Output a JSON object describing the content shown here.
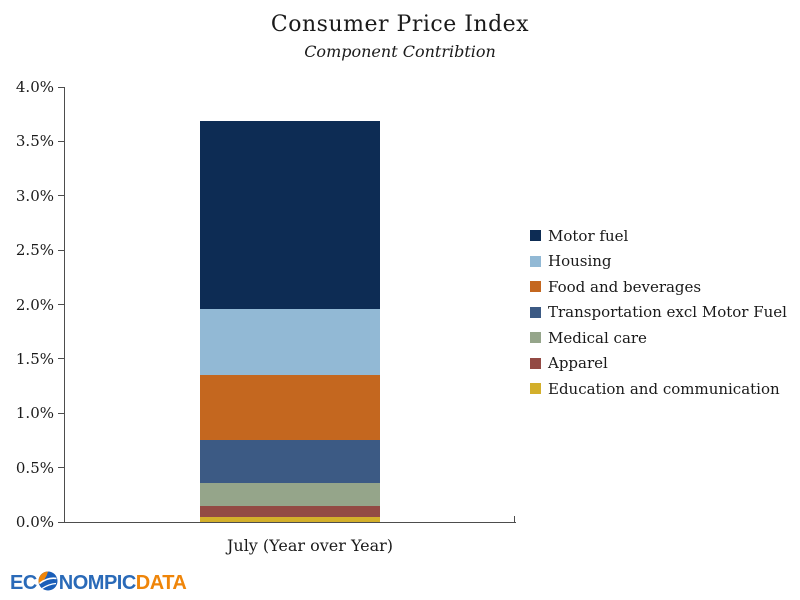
{
  "title": "Consumer Price Index",
  "subtitle": "Component Contribtion",
  "chart_data": {
    "type": "bar",
    "stacked": true,
    "categories": [
      "July (Year over Year)"
    ],
    "series": [
      {
        "name": "Motor fuel",
        "values": [
          1.73
        ],
        "color": "#0d2c54"
      },
      {
        "name": "Housing",
        "values": [
          0.61
        ],
        "color": "#92b9d5"
      },
      {
        "name": "Food and beverages",
        "values": [
          0.6
        ],
        "color": "#c4671f"
      },
      {
        "name": "Transportation excl Motor Fuel",
        "values": [
          0.39
        ],
        "color": "#3c5a84"
      },
      {
        "name": "Medical care",
        "values": [
          0.21
        ],
        "color": "#95a58a"
      },
      {
        "name": "Apparel",
        "values": [
          0.1
        ],
        "color": "#934a44"
      },
      {
        "name": "Education and communication",
        "values": [
          0.05
        ],
        "color": "#d3af2b"
      }
    ],
    "xlabel": "July (Year over Year)",
    "ylim": [
      0,
      4.0
    ],
    "ytick_step": 0.5,
    "ytick_labels": [
      "0.0%",
      "0.5%",
      "1.0%",
      "1.5%",
      "2.0%",
      "2.5%",
      "3.0%",
      "3.5%",
      "4.0%"
    ],
    "grid": false,
    "legend_position": "right"
  },
  "logo": {
    "part1": "EC",
    "part2": "NOMPIC",
    "part3": "DATA",
    "blue": "#2a6ab8",
    "orange": "#ef8509"
  }
}
